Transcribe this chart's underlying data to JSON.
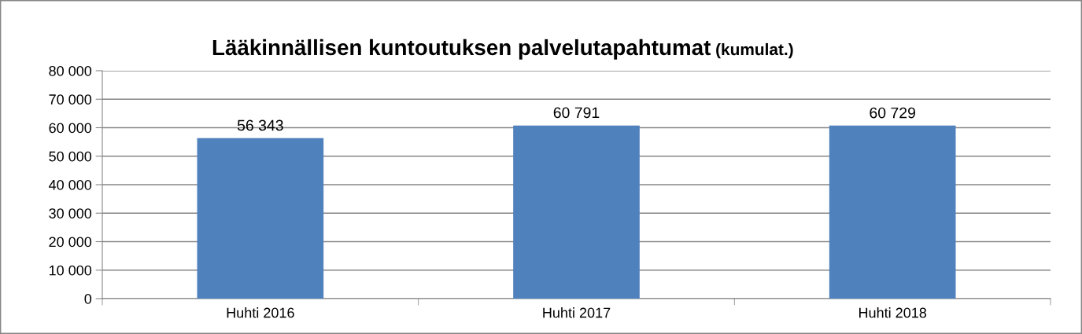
{
  "chart_data": {
    "type": "bar",
    "title": "Lääkinnällisen kuntoutuksen palvelutapahtumat",
    "subtitle": "(kumulat.)",
    "categories": [
      "Huhti 2016",
      "Huhti 2017",
      "Huhti 2018"
    ],
    "values": [
      56343,
      60791,
      60729
    ],
    "color": "#4f81bd",
    "value_labels": [
      "56 343",
      "60 791",
      "60 729"
    ],
    "ylim": [
      0,
      80000
    ],
    "yticks": [
      {
        "value": 0,
        "label": "0"
      },
      {
        "value": 10000,
        "label": "10 000"
      },
      {
        "value": 20000,
        "label": "20 000"
      },
      {
        "value": 30000,
        "label": "30 000"
      },
      {
        "value": 40000,
        "label": "40 000"
      },
      {
        "value": 50000,
        "label": "50 000"
      },
      {
        "value": 60000,
        "label": "60 000"
      },
      {
        "value": 70000,
        "label": "70 000"
      },
      {
        "value": 80000,
        "label": "80 000"
      }
    ],
    "grid": "y",
    "legend": false
  }
}
